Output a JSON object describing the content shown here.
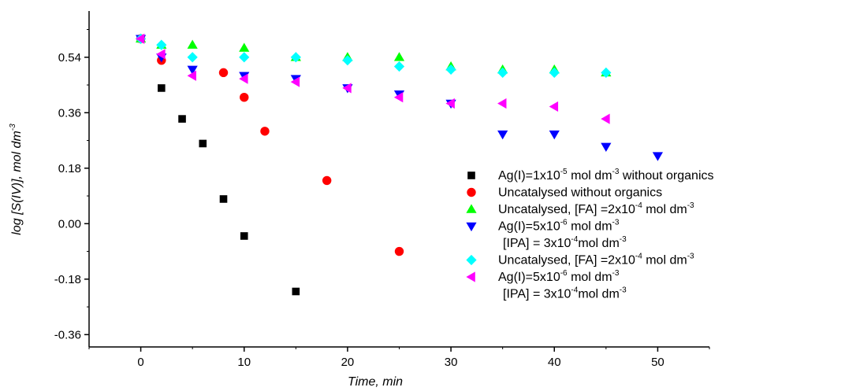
{
  "chart_data": {
    "type": "scatter",
    "xlabel": "Time, min",
    "ylabel": "log [S(IV)], mol dm",
    "ylabel_sup": "-3",
    "xlim": [
      -5,
      55
    ],
    "ylim": [
      -0.4,
      0.69
    ],
    "x_ticks": [
      0,
      10,
      20,
      30,
      40,
      50
    ],
    "x_tick_labels": [
      "0",
      "10",
      "20",
      "30",
      "40",
      "50"
    ],
    "y_ticks": [
      -0.36,
      -0.18,
      0.0,
      0.18,
      0.36,
      0.54
    ],
    "y_tick_labels": [
      "-0.36",
      "-0.18",
      "0.00",
      "0.18",
      "0.36",
      "0.54"
    ],
    "grid": false,
    "legend_position": "lower-right",
    "series": [
      {
        "marker": "square",
        "color": "#000000",
        "legend_lines": [
          [
            {
              "t": "Ag(I)=1x10"
            },
            {
              "t": "-5",
              "sup": true
            },
            {
              "t": " mol dm"
            },
            {
              "t": "-3",
              "sup": true
            },
            {
              "t": " without organics"
            }
          ]
        ],
        "x": [
          0,
          2,
          4,
          6,
          8,
          10,
          15
        ],
        "y": [
          0.6,
          0.44,
          0.34,
          0.26,
          0.08,
          -0.04,
          -0.22
        ]
      },
      {
        "marker": "circle",
        "color": "#ff0000",
        "legend_lines": [
          [
            {
              "t": "Uncatalysed without organics"
            }
          ]
        ],
        "x": [
          0,
          2,
          8,
          10,
          12,
          18,
          25
        ],
        "y": [
          0.6,
          0.53,
          0.49,
          0.41,
          0.3,
          0.14,
          -0.09
        ]
      },
      {
        "marker": "triangle-up",
        "color": "#00ff00",
        "legend_lines": [
          [
            {
              "t": "Uncatalysed, [FA] =2x10"
            },
            {
              "t": "-4",
              "sup": true
            },
            {
              "t": " mol dm"
            },
            {
              "t": "-3",
              "sup": true
            }
          ]
        ],
        "x": [
          0,
          2,
          5,
          10,
          15,
          20,
          25,
          30,
          35,
          40,
          45
        ],
        "y": [
          0.6,
          0.58,
          0.58,
          0.57,
          0.54,
          0.54,
          0.54,
          0.51,
          0.5,
          0.5,
          0.49
        ]
      },
      {
        "marker": "triangle-down",
        "color": "#0000ff",
        "legend_lines": [
          [
            {
              "t": "Ag(I)=5x10"
            },
            {
              "t": "-6",
              "sup": true
            },
            {
              "t": " mol dm"
            },
            {
              "t": "-3",
              "sup": true
            }
          ],
          [
            {
              "t": "[IPA] = 3x10"
            },
            {
              "t": "-4",
              "sup": true
            },
            {
              "t": "mol dm"
            },
            {
              "t": "-3",
              "sup": true
            }
          ]
        ],
        "x": [
          0,
          2,
          5,
          10,
          15,
          20,
          25,
          30,
          35,
          40,
          45,
          50
        ],
        "y": [
          0.6,
          0.54,
          0.5,
          0.48,
          0.47,
          0.44,
          0.42,
          0.39,
          0.29,
          0.29,
          0.25,
          0.22
        ]
      },
      {
        "marker": "diamond",
        "color": "#00ffff",
        "legend_lines": [
          [
            {
              "t": "Uncatalysed, [FA] =2x10"
            },
            {
              "t": "-4",
              "sup": true
            },
            {
              "t": " mol dm"
            },
            {
              "t": "-3",
              "sup": true
            }
          ]
        ],
        "x": [
          0,
          2,
          5,
          10,
          15,
          20,
          25,
          30,
          35,
          40,
          45
        ],
        "y": [
          0.6,
          0.58,
          0.54,
          0.54,
          0.54,
          0.53,
          0.51,
          0.5,
          0.49,
          0.49,
          0.49
        ]
      },
      {
        "marker": "triangle-left",
        "color": "#ff00ff",
        "legend_lines": [
          [
            {
              "t": "Ag(I)=5x10"
            },
            {
              "t": "-6",
              "sup": true
            },
            {
              "t": " mol dm"
            },
            {
              "t": "-3",
              "sup": true
            }
          ],
          [
            {
              "t": "[IPA] = 3x10"
            },
            {
              "t": "-4",
              "sup": true
            },
            {
              "t": "mol dm"
            },
            {
              "t": "-3",
              "sup": true
            }
          ]
        ],
        "x": [
          0,
          2,
          5,
          10,
          15,
          20,
          25,
          30,
          35,
          40,
          45
        ],
        "y": [
          0.6,
          0.55,
          0.48,
          0.47,
          0.46,
          0.44,
          0.41,
          0.39,
          0.39,
          0.38,
          0.34
        ]
      }
    ]
  }
}
